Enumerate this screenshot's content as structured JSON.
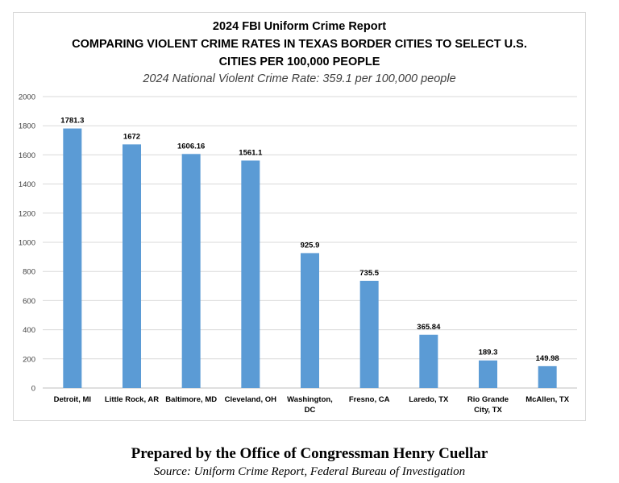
{
  "chart_data": {
    "type": "bar",
    "title_lines": [
      "2024 FBI Uniform Crime Report",
      "COMPARING VIOLENT CRIME RATES IN TEXAS BORDER CITIES TO SELECT U.S.",
      "CITIES PER 100,000 PEOPLE"
    ],
    "subtitle": "2024 National Violent Crime Rate: 359.1 per 100,000 people",
    "categories": [
      [
        "Detroit, MI"
      ],
      [
        "Little Rock, AR"
      ],
      [
        "Baltimore, MD"
      ],
      [
        "Cleveland, OH"
      ],
      [
        "Washington,",
        "DC"
      ],
      [
        "Fresno, CA"
      ],
      [
        "Laredo, TX"
      ],
      [
        "Rio Grande",
        "City, TX"
      ],
      [
        "McAllen, TX"
      ]
    ],
    "values": [
      1781.3,
      1672,
      1606.16,
      1561.1,
      925.9,
      735.5,
      365.84,
      189.3,
      149.98
    ],
    "value_labels": [
      "1781.3",
      "1672",
      "1606.16",
      "1561.1",
      "925.9",
      "735.5",
      "365.84",
      "189.3",
      "149.98"
    ],
    "y_ticks": [
      0,
      200,
      400,
      600,
      800,
      1000,
      1200,
      1400,
      1600,
      1800,
      2000
    ],
    "ylim": [
      0,
      2000
    ],
    "grid": true,
    "bar_color": "#5b9bd5",
    "grid_color": "#d9d9d9"
  },
  "footer": {
    "prepared_by": "Prepared by the Office of Congressman Henry Cuellar",
    "source": "Source: Uniform Crime Report, Federal Bureau of Investigation"
  }
}
